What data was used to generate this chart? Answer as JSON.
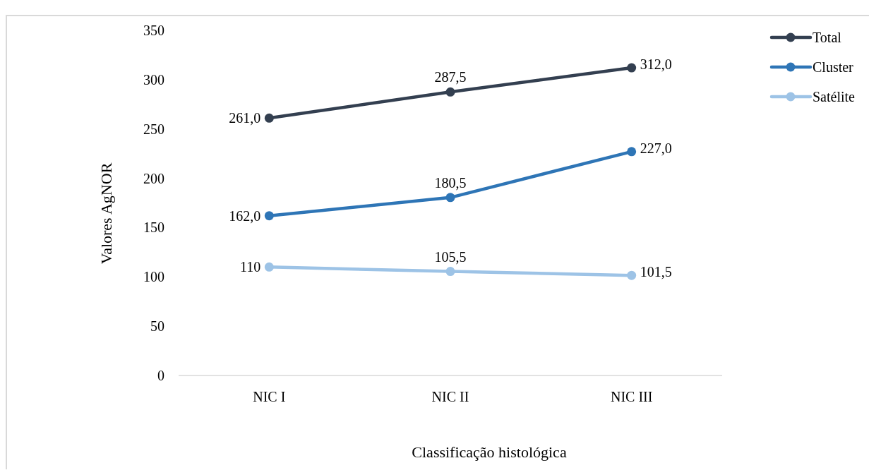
{
  "chart_data": {
    "type": "line",
    "xlabel": "Classificação histológica",
    "ylabel": "Valores AgNOR",
    "categories": [
      "NIC I",
      "NIC II",
      "NIC III"
    ],
    "ylim": [
      0,
      350
    ],
    "yticks": [
      0,
      50,
      100,
      150,
      200,
      250,
      300,
      350
    ],
    "grid": false,
    "legend": "top right",
    "marker": "circle",
    "line_style": "solid",
    "series": [
      {
        "name": "Total",
        "color": "#333f50",
        "values": [
          261.0,
          287.5,
          312.0
        ],
        "value_labels": [
          "261,0",
          "287,5",
          "312,0"
        ]
      },
      {
        "name": "Cluster",
        "color": "#2e75b6",
        "values": [
          162.0,
          180.5,
          227.0
        ],
        "value_labels": [
          "162,0",
          "180,5",
          "227,0"
        ]
      },
      {
        "name": "Satélite",
        "color": "#9dc3e6",
        "values": [
          110,
          105.5,
          101.5
        ],
        "value_labels": [
          "110",
          "105,5",
          "101,5"
        ]
      }
    ]
  }
}
